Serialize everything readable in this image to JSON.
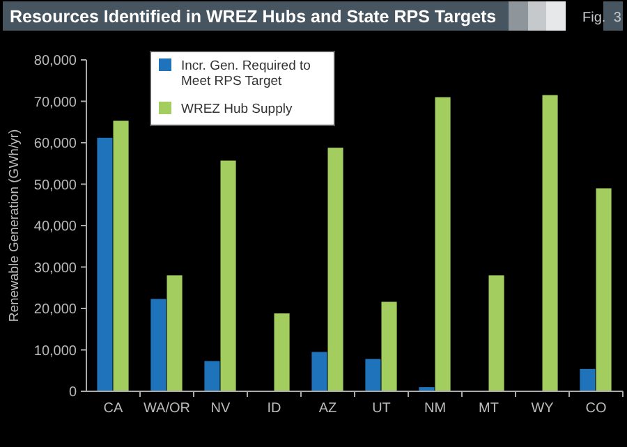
{
  "chart_data": {
    "type": "bar",
    "title": "Resources Identified in WREZ Hubs and State RPS Targets",
    "ylabel": "Renewable Generation (GWh/yr)",
    "annotations": [
      "Fig. 3"
    ],
    "categories": [
      "CA",
      "WA/OR",
      "NV",
      "ID",
      "AZ",
      "UT",
      "NM",
      "MT",
      "WY",
      "CO"
    ],
    "series": [
      {
        "name": "Incr. Gen. Required to Meet RPS Target",
        "color": "#1f73bb",
        "values": [
          61200,
          22300,
          7300,
          0,
          9500,
          7800,
          1000,
          0,
          0,
          5400
        ]
      },
      {
        "name": "WREZ Hub Supply",
        "color": "#a3cd5e",
        "values": [
          65300,
          28000,
          55700,
          18800,
          58800,
          21600,
          71000,
          28000,
          71500,
          49000
        ]
      }
    ],
    "ylim": [
      0,
      80000
    ],
    "yticks": [
      {
        "value": 0,
        "label": "0"
      },
      {
        "value": 10000,
        "label": "10,000"
      },
      {
        "value": 20000,
        "label": "20,000"
      },
      {
        "value": 30000,
        "label": "30,000"
      },
      {
        "value": 40000,
        "label": "40,000"
      },
      {
        "value": 50000,
        "label": "50,000"
      },
      {
        "value": 60000,
        "label": "60,000"
      },
      {
        "value": 70000,
        "label": "70,000"
      },
      {
        "value": 80000,
        "label": "80,000"
      }
    ],
    "legend": "top left"
  }
}
